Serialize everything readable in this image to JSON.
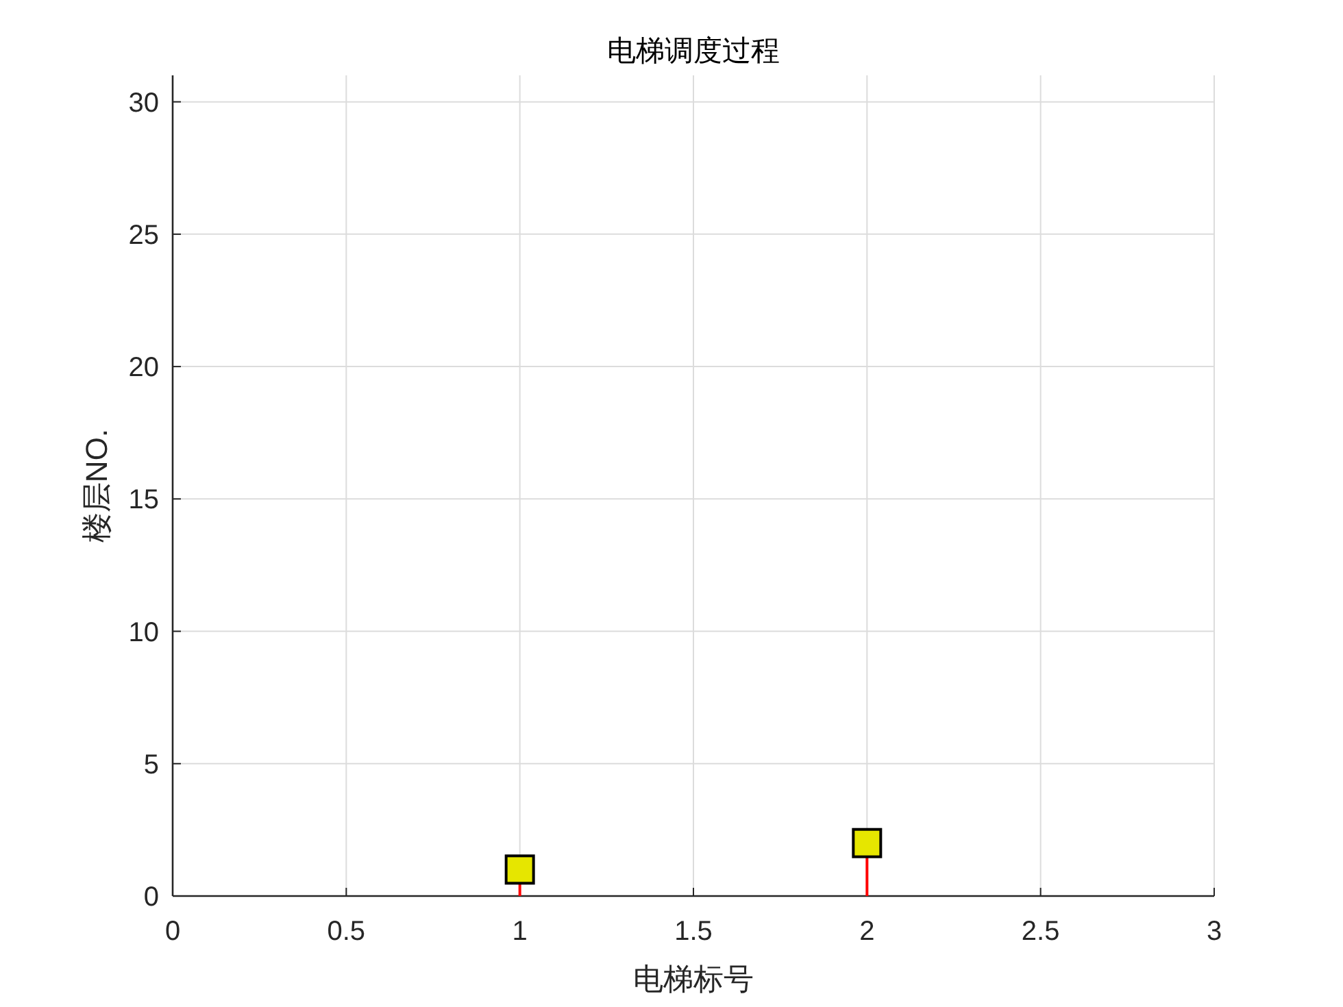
{
  "chart_data": {
    "type": "lollipop",
    "title": "电梯调度过程",
    "xlabel": "电梯标号",
    "ylabel": "楼层NO.",
    "x": [
      1,
      2
    ],
    "series": [
      {
        "color": "#e6e600",
        "values": [
          1,
          2
        ]
      }
    ],
    "marker": "square",
    "xlim": [
      0,
      3
    ],
    "xticks": [
      0,
      0.5,
      1,
      1.5,
      2,
      2.5,
      3
    ],
    "ylim": [
      0,
      31
    ],
    "yticks": [
      0,
      5,
      10,
      15,
      20,
      25,
      30
    ],
    "grid": true
  }
}
